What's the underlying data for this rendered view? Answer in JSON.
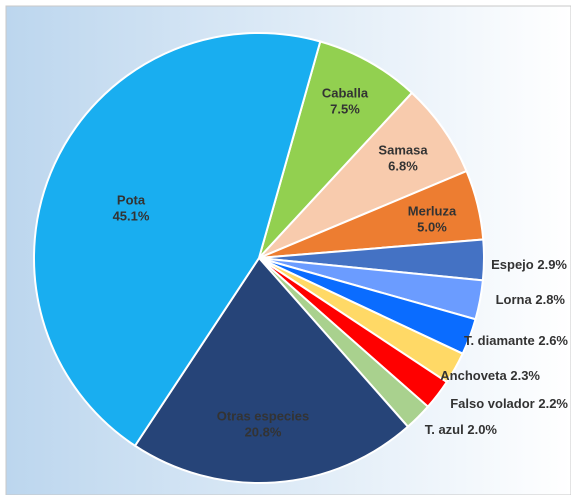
{
  "chart_data": {
    "type": "pie",
    "categories": [
      "Caballa",
      "Samasa",
      "Merluza",
      "Espejo",
      "Lorna",
      "T. diamante",
      "Anchoveta",
      "Falso volador",
      "T. azul",
      "Otras especies",
      "Pota"
    ],
    "values": [
      7.5,
      6.8,
      5.0,
      2.9,
      2.8,
      2.6,
      2.3,
      2.2,
      2.0,
      20.8,
      45.1
    ],
    "value_labels": [
      "7.5%",
      "6.8%",
      "5.0%",
      "2.9%",
      "2.8%",
      "2.6%",
      "2.3%",
      "2.2%",
      "2.0%",
      "20.8%",
      "45.1%"
    ],
    "colors": [
      "#92d050",
      "#f8cbad",
      "#ed7d31",
      "#4472c4",
      "#6b9cff",
      "#0a6cff",
      "#ffd966",
      "#ff0000",
      "#a9d18e",
      "#264478",
      "#19aef0"
    ]
  }
}
